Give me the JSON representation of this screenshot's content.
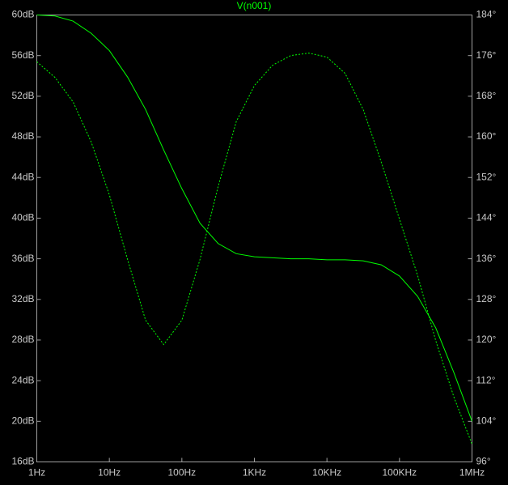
{
  "chart_data": {
    "type": "line",
    "title": "V(n001)",
    "log_x": true,
    "grid": false,
    "x": [
      1,
      1.78,
      3.16,
      5.62,
      10,
      17.8,
      31.6,
      56.2,
      100,
      178,
      316,
      562,
      1000,
      1780,
      3160,
      5620,
      10000,
      17800,
      31600,
      56200,
      100000,
      178000,
      316000,
      562000,
      1000000
    ],
    "series": [
      {
        "color": "#00ff00",
        "style": "solid",
        "axis": "y",
        "values": [
          60,
          59.9,
          59.4,
          58.2,
          56.5,
          53.9,
          50.7,
          46.7,
          42.9,
          39.5,
          37.5,
          36.5,
          36.2,
          36.1,
          36.0,
          36.0,
          35.9,
          35.9,
          35.8,
          35.4,
          34.3,
          32.3,
          29.2,
          24.8,
          20.0
        ]
      },
      {
        "color": "#00ff00",
        "style": "dashed",
        "axis": "y2",
        "values": [
          174.8,
          171.7,
          166.9,
          159.0,
          148.6,
          135.9,
          123.9,
          119.1,
          123.9,
          135.9,
          150.2,
          163.0,
          170.1,
          174.1,
          176.0,
          176.5,
          175.7,
          172.5,
          165.4,
          155.0,
          143.8,
          132.7,
          119.9,
          108.8,
          99.5
        ]
      }
    ],
    "xlim": [
      1,
      1000000
    ],
    "xticks": [
      {
        "value": 1,
        "label": "1Hz"
      },
      {
        "value": 10,
        "label": "10Hz"
      },
      {
        "value": 100,
        "label": "100Hz"
      },
      {
        "value": 1000,
        "label": "1KHz"
      },
      {
        "value": 10000,
        "label": "10KHz"
      },
      {
        "value": 100000,
        "label": "100KHz"
      },
      {
        "value": 1000000,
        "label": "1MHz"
      }
    ],
    "ylim": [
      16,
      60
    ],
    "yticks": [
      {
        "value": 16,
        "label": "16dB"
      },
      {
        "value": 20,
        "label": "20dB"
      },
      {
        "value": 24,
        "label": "24dB"
      },
      {
        "value": 28,
        "label": "28dB"
      },
      {
        "value": 32,
        "label": "32dB"
      },
      {
        "value": 36,
        "label": "36dB"
      },
      {
        "value": 40,
        "label": "40dB"
      },
      {
        "value": 44,
        "label": "44dB"
      },
      {
        "value": 48,
        "label": "48dB"
      },
      {
        "value": 52,
        "label": "52dB"
      },
      {
        "value": 56,
        "label": "56dB"
      },
      {
        "value": 60,
        "label": "60dB"
      }
    ],
    "y2lim": [
      96,
      184
    ],
    "y2ticks": [
      {
        "value": 96,
        "label": "96°"
      },
      {
        "value": 104,
        "label": "104°"
      },
      {
        "value": 112,
        "label": "112°"
      },
      {
        "value": 120,
        "label": "120°"
      },
      {
        "value": 128,
        "label": "128°"
      },
      {
        "value": 136,
        "label": "136°"
      },
      {
        "value": 144,
        "label": "144°"
      },
      {
        "value": 152,
        "label": "152°"
      },
      {
        "value": 160,
        "label": "160°"
      },
      {
        "value": 168,
        "label": "168°"
      },
      {
        "value": 176,
        "label": "176°"
      },
      {
        "value": 184,
        "label": "184°"
      }
    ]
  }
}
